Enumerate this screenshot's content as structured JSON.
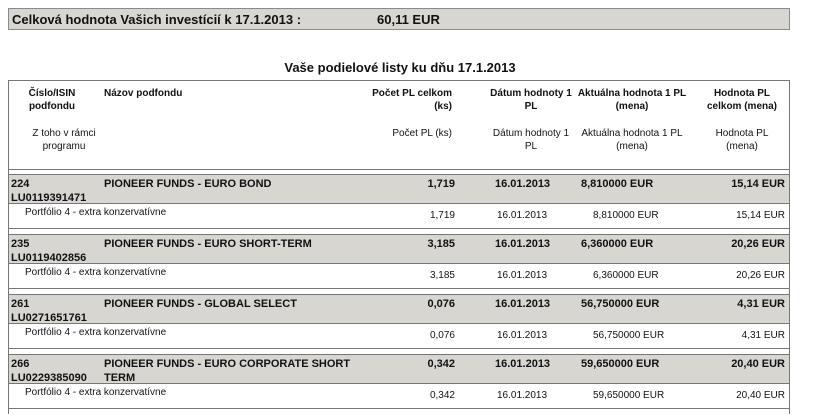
{
  "summary": {
    "title": "Celková hodnota Vašich investícií k 17.1.2013 :",
    "value": "60,11 EUR"
  },
  "heading": "Vaše podielové listy ku dňu 17.1.2013",
  "header": {
    "col1": "Číslo/ISIN podfondu",
    "col2": "Názov podfondu",
    "col3": "Počet PL celkom (ks)",
    "col4": "Dátum hodnoty 1 PL",
    "col5": "Aktuálna hodnota 1 PL (mena)",
    "col6": "Hodnota PL celkom (mena)",
    "sub1": "Z toho v rámci programu",
    "sub3": "Počet PL (ks)",
    "sub4": "Dátum hodnoty 1 PL",
    "sub5": "Aktuálna hodnota 1 PL (mena)",
    "sub6": "Hodnota PL (mena)"
  },
  "funds": [
    {
      "num": "224",
      "isin": "LU0119391471",
      "name": "PIONEER FUNDS - EURO BOND",
      "name2": "",
      "count": "1,719",
      "date": "16.01.2013",
      "price": "8,810000 EUR",
      "total": "15,14 EUR",
      "sub": {
        "program": "Portfólio 4 - extra konzervatívne",
        "count": "1,719",
        "date": "16.01.2013",
        "price": "8,810000 EUR",
        "total": "15,14 EUR"
      }
    },
    {
      "num": "235",
      "isin": "LU0119402856",
      "name": "PIONEER FUNDS - EURO SHORT-TERM",
      "name2": "",
      "count": "3,185",
      "date": "16.01.2013",
      "price": "6,360000 EUR",
      "total": "20,26 EUR",
      "sub": {
        "program": "Portfólio 4 - extra konzervatívne",
        "count": "3,185",
        "date": "16.01.2013",
        "price": "6,360000 EUR",
        "total": "20,26 EUR"
      }
    },
    {
      "num": "261",
      "isin": "LU0271651761",
      "name": "PIONEER FUNDS - GLOBAL SELECT",
      "name2": "",
      "count": "0,076",
      "date": "16.01.2013",
      "price": "56,750000 EUR",
      "total": "4,31 EUR",
      "sub": {
        "program": "Portfólio 4 - extra konzervatívne",
        "count": "0,076",
        "date": "16.01.2013",
        "price": "56,750000 EUR",
        "total": "4,31 EUR"
      }
    },
    {
      "num": "266",
      "isin": "LU0229385090",
      "name": "PIONEER FUNDS - EURO CORPORATE SHORT",
      "name2": "TERM",
      "count": "0,342",
      "date": "16.01.2013",
      "price": "59,650000 EUR",
      "total": "20,40 EUR",
      "sub": {
        "program": "Portfólio 4 - extra konzervatívne",
        "count": "0,342",
        "date": "16.01.2013",
        "price": "59,650000 EUR",
        "total": "20,40 EUR"
      }
    }
  ]
}
